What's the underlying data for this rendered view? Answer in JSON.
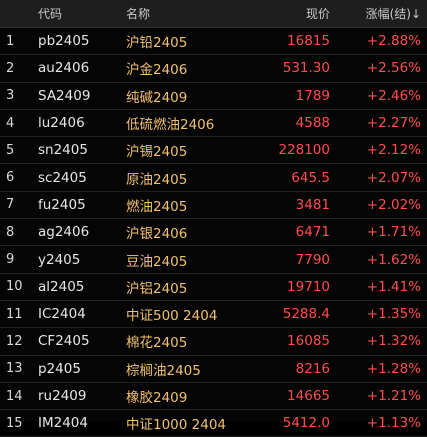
{
  "header": {
    "code": "代码",
    "name": "名称",
    "price": "现价",
    "change": "涨幅(结)↓"
  },
  "colors": {
    "up": "#ff4d4d",
    "name_text": "#f0c070",
    "background": "#050505"
  },
  "rows": [
    {
      "idx": "1",
      "code": "pb2405",
      "name": "沪铅2405",
      "price": "16815",
      "change": "+2.88%"
    },
    {
      "idx": "2",
      "code": "au2406",
      "name": "沪金2406",
      "price": "531.30",
      "change": "+2.56%"
    },
    {
      "idx": "3",
      "code": "SA2409",
      "name": "纯碱2409",
      "price": "1789",
      "change": "+2.46%"
    },
    {
      "idx": "4",
      "code": "lu2406",
      "name": "低硫燃油2406",
      "price": "4588",
      "change": "+2.27%"
    },
    {
      "idx": "5",
      "code": "sn2405",
      "name": "沪锡2405",
      "price": "228100",
      "change": "+2.12%"
    },
    {
      "idx": "6",
      "code": "sc2405",
      "name": "原油2405",
      "price": "645.5",
      "change": "+2.07%"
    },
    {
      "idx": "7",
      "code": "fu2405",
      "name": "燃油2405",
      "price": "3481",
      "change": "+2.02%"
    },
    {
      "idx": "8",
      "code": "ag2406",
      "name": "沪银2406",
      "price": "6471",
      "change": "+1.71%"
    },
    {
      "idx": "9",
      "code": "y2405",
      "name": "豆油2405",
      "price": "7790",
      "change": "+1.62%"
    },
    {
      "idx": "10",
      "code": "al2405",
      "name": "沪铝2405",
      "price": "19710",
      "change": "+1.41%"
    },
    {
      "idx": "11",
      "code": "IC2404",
      "name": "中证500 2404",
      "price": "5288.4",
      "change": "+1.35%"
    },
    {
      "idx": "12",
      "code": "CF2405",
      "name": "棉花2405",
      "price": "16085",
      "change": "+1.32%"
    },
    {
      "idx": "13",
      "code": "p2405",
      "name": "棕榈油2405",
      "price": "8216",
      "change": "+1.28%"
    },
    {
      "idx": "14",
      "code": "ru2409",
      "name": "橡胶2409",
      "price": "14665",
      "change": "+1.21%"
    },
    {
      "idx": "15",
      "code": "IM2404",
      "name": "中证1000 2404",
      "price": "5412.0",
      "change": "+1.13%"
    }
  ]
}
